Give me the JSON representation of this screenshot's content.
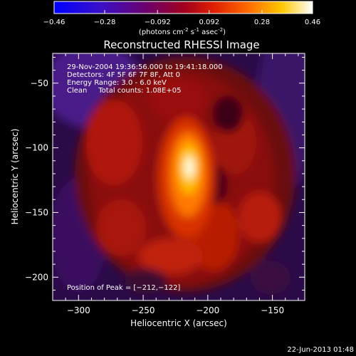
{
  "colorbar": {
    "ticks": [
      "-0.46",
      "-0.28",
      "-0.092",
      "0.092",
      "0.28",
      "0.46"
    ],
    "tick_values": [
      -0.46,
      -0.28,
      -0.092,
      0.092,
      0.28,
      0.46
    ],
    "units": "(photons cm",
    "units_sup1": "-2",
    "units_mid1": " s",
    "units_sup2": "-1",
    "units_mid2": " asec",
    "units_sup3": "-2",
    "units_end": ")",
    "range": [
      -0.46,
      0.46
    ],
    "colors": [
      "#0000ff",
      "#5a00a8",
      "#8a0040",
      "#d01000",
      "#ff6a00",
      "#ffd000",
      "#ffffff"
    ]
  },
  "chart_data": {
    "type": "heatmap",
    "title": "Reconstructed RHESSI Image",
    "xlabel": "Heliocentric X (arcsec)",
    "ylabel": "Heliocentric Y (arcsec)",
    "xlim": [
      -320,
      -125
    ],
    "ylim": [
      -218,
      -27
    ],
    "x_ticks": [
      -300,
      -250,
      -200,
      -150
    ],
    "y_ticks": [
      -50,
      -100,
      -150,
      -200
    ],
    "x_tick_labels": [
      "−300",
      "−250",
      "−200",
      "−150"
    ],
    "y_tick_labels": [
      "−50",
      "−100",
      "−150",
      "−200"
    ],
    "peak": {
      "x": -212,
      "y": -122
    },
    "info_lines": [
      "29-Nov-2004 19:36:56.000 to 19:41:18.000",
      "Detectors: 4F 5F 6F 7F 8F, Att 0",
      "Energy Range: 3.0 - 6.0 keV",
      "Clean     Total counts: 1.08E+05"
    ],
    "peak_label": "Position of Peak = [−212,−122]"
  },
  "footer": {
    "timestamp": "22-Jun-2013 01:48"
  }
}
